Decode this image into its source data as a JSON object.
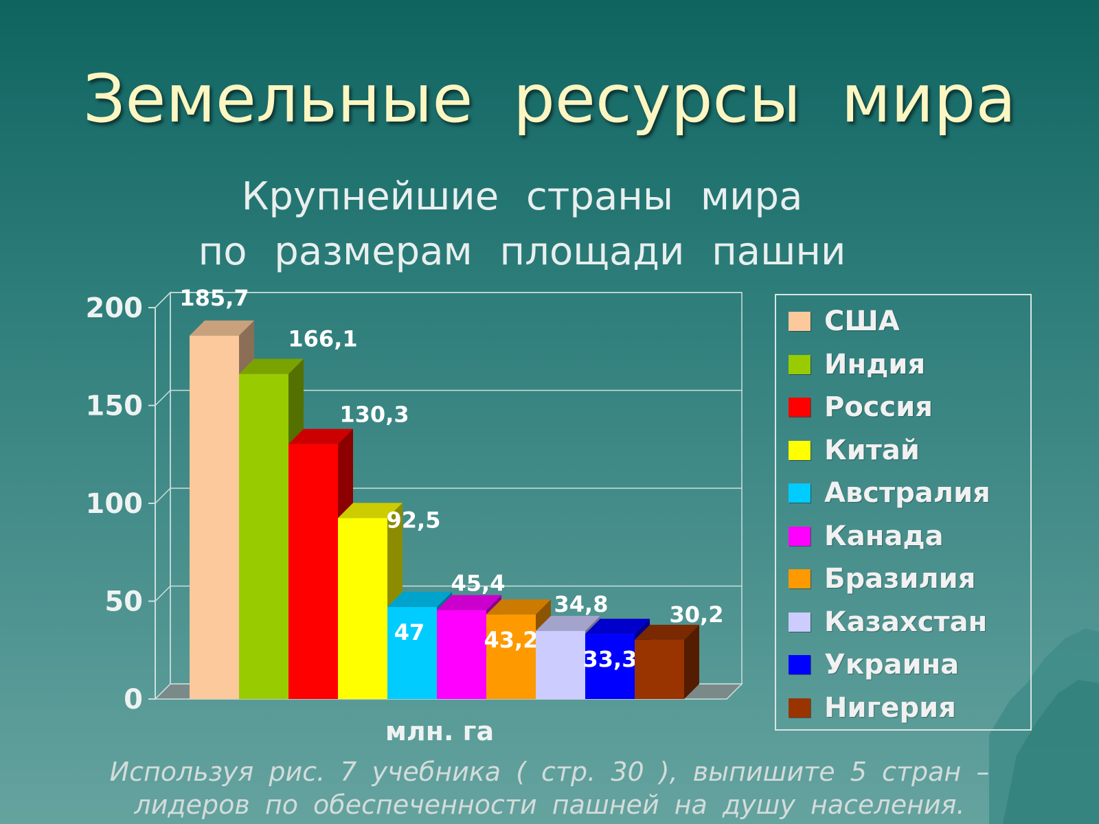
{
  "slide": {
    "title": "Земельные ресурсы мира",
    "footnote_line1": "Используя рис. 7 учебника ( стр. 30 ), выпишите 5 стран –",
    "footnote_line2": "лидеров по обеспеченности пашней на душу населения."
  },
  "chart_data": {
    "type": "bar",
    "title_line1": "Крупнейшие страны мира",
    "title_line2": "по размерам площади пашни",
    "xlabel": "млн. га",
    "ylabel": "",
    "ylim": [
      0,
      200
    ],
    "yticks": [
      0,
      50,
      100,
      150,
      200
    ],
    "grid": true,
    "legend_position": "right",
    "categories": [
      "США",
      "Индия",
      "Россия",
      "Китай",
      "Австралия",
      "Канада",
      "Бразилия",
      "Казахстан",
      "Украина",
      "Нигерия"
    ],
    "values": [
      185.7,
      166.1,
      130.3,
      92.5,
      47,
      45.4,
      43.2,
      34.8,
      33.3,
      30.2
    ],
    "value_labels": [
      "185,7",
      "166,1",
      "130,3",
      "92,5",
      "47",
      "45,4",
      "43,2",
      "34,8",
      "33,3",
      "30,2"
    ],
    "colors": [
      "#fbc99c",
      "#99cc00",
      "#ff0000",
      "#ffff00",
      "#00ccff",
      "#ff00ff",
      "#ff9900",
      "#ccccff",
      "#0000ff",
      "#993300"
    ]
  }
}
